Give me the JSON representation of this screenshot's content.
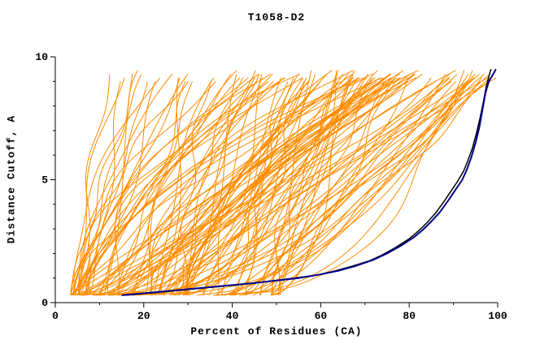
{
  "chart_data": {
    "type": "line",
    "title": "T1058-D2",
    "xlabel": "Percent of Residues (CA)",
    "ylabel": "Distance Cutoff, A",
    "xlim": [
      0,
      100
    ],
    "ylim": [
      0,
      10
    ],
    "xticks": [
      0,
      20,
      40,
      60,
      80,
      100
    ],
    "yticks": [
      0,
      5,
      10
    ],
    "x_minor_step": 10,
    "y_minor_step": 1,
    "grid": false,
    "legend": "none",
    "background_ensemble": {
      "label": "prediction-curves",
      "color": "#FF8C00",
      "count": 130,
      "seed": 11,
      "line_width": 1,
      "x_start_range": [
        4,
        52
      ],
      "y_range": [
        0.3,
        9.5
      ]
    },
    "series": [
      {
        "name": "highlighted-model-black",
        "color": "#000000",
        "line_width": 1.5,
        "points": [
          [
            16,
            0.3
          ],
          [
            22,
            0.4
          ],
          [
            28,
            0.5
          ],
          [
            35,
            0.62
          ],
          [
            42,
            0.74
          ],
          [
            48,
            0.86
          ],
          [
            54,
            1.0
          ],
          [
            59,
            1.12
          ],
          [
            63,
            1.28
          ],
          [
            67,
            1.48
          ],
          [
            71,
            1.7
          ],
          [
            74,
            1.95
          ],
          [
            77,
            2.25
          ],
          [
            80,
            2.6
          ],
          [
            82,
            2.9
          ],
          [
            84,
            3.25
          ],
          [
            86,
            3.65
          ],
          [
            88,
            4.15
          ],
          [
            89.5,
            4.55
          ],
          [
            91,
            4.95
          ],
          [
            92.3,
            5.35
          ],
          [
            93.3,
            5.8
          ],
          [
            94.3,
            6.3
          ],
          [
            95.2,
            6.9
          ],
          [
            96,
            7.5
          ],
          [
            96.8,
            8.2
          ],
          [
            97.4,
            8.8
          ],
          [
            98,
            9.2
          ],
          [
            98.5,
            9.5
          ]
        ]
      },
      {
        "name": "highlighted-model-navy",
        "color": "#00008B",
        "line_width": 2,
        "points": [
          [
            15,
            0.3
          ],
          [
            20,
            0.38
          ],
          [
            26,
            0.48
          ],
          [
            32,
            0.58
          ],
          [
            38,
            0.68
          ],
          [
            44,
            0.78
          ],
          [
            50,
            0.9
          ],
          [
            55,
            1.0
          ],
          [
            60,
            1.15
          ],
          [
            64,
            1.3
          ],
          [
            68,
            1.5
          ],
          [
            72,
            1.75
          ],
          [
            75,
            2.0
          ],
          [
            78,
            2.3
          ],
          [
            81,
            2.65
          ],
          [
            83,
            2.95
          ],
          [
            85,
            3.3
          ],
          [
            87,
            3.7
          ],
          [
            89,
            4.2
          ],
          [
            90.5,
            4.6
          ],
          [
            92,
            5.0
          ],
          [
            93,
            5.4
          ],
          [
            94,
            5.9
          ],
          [
            95,
            6.5
          ],
          [
            95.8,
            7.1
          ],
          [
            96.5,
            7.8
          ],
          [
            97.2,
            8.5
          ],
          [
            98,
            9.0
          ],
          [
            99,
            9.3
          ],
          [
            99.6,
            9.5
          ]
        ]
      }
    ]
  }
}
